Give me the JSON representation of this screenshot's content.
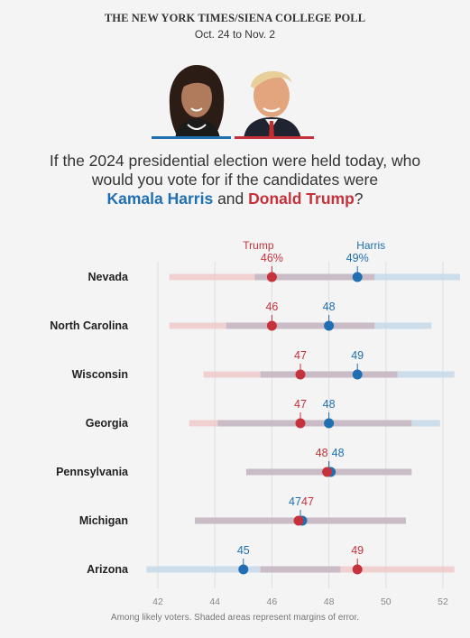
{
  "header": {
    "title": "THE NEW YORK TIMES/SIENA COLLEGE POLL",
    "dates": "Oct. 24 to Nov. 2"
  },
  "question": {
    "prefix": "If the 2024 presidential election were held today, who would you vote for if the candidates were",
    "harris": "Kamala Harris",
    "and": "and",
    "trump": "Donald Trump",
    "suffix": "?"
  },
  "colors": {
    "harris": "#1f6fb2",
    "trump": "#c5323b",
    "harris_band": "#c6d8e8",
    "trump_band": "#f0c9cb",
    "overlap_band": "#c9bcc6",
    "grid": "#dddddd"
  },
  "chart_data": {
    "type": "scatter",
    "xlim": [
      41.3,
      52.7
    ],
    "xticks": [
      42,
      44,
      46,
      48,
      50,
      52
    ],
    "grid": true,
    "legend": [
      "Trump",
      "Harris"
    ],
    "rows": [
      {
        "state": "Nevada",
        "trump": 46,
        "harris": 49,
        "trump_label": "46%",
        "harris_label": "49%",
        "trump_range": [
          42.4,
          49.6
        ],
        "harris_range": [
          45.4,
          52.6
        ]
      },
      {
        "state": "North Carolina",
        "trump": 46,
        "harris": 48,
        "trump_label": "46",
        "harris_label": "48",
        "trump_range": [
          42.4,
          49.6
        ],
        "harris_range": [
          44.4,
          51.6
        ]
      },
      {
        "state": "Wisconsin",
        "trump": 47,
        "harris": 49,
        "trump_label": "47",
        "harris_label": "49",
        "trump_range": [
          43.6,
          50.4
        ],
        "harris_range": [
          45.6,
          52.4
        ]
      },
      {
        "state": "Georgia",
        "trump": 47,
        "harris": 48,
        "trump_label": "47",
        "harris_label": "48",
        "trump_range": [
          43.1,
          50.9
        ],
        "harris_range": [
          44.1,
          51.9
        ]
      },
      {
        "state": "Pennsylvania",
        "trump": 48,
        "harris": 48,
        "trump_label": "48",
        "harris_label": "48",
        "trump_range": [
          45.1,
          50.9
        ],
        "harris_range": [
          45.1,
          50.9
        ]
      },
      {
        "state": "Michigan",
        "trump": 47,
        "harris": 47,
        "trump_label": "47",
        "harris_label": "47",
        "trump_range": [
          43.3,
          50.7
        ],
        "harris_range": [
          43.3,
          50.7
        ]
      },
      {
        "state": "Arizona",
        "trump": 49,
        "harris": 45,
        "trump_label": "49",
        "harris_label": "45",
        "trump_range": [
          45.6,
          52.4
        ],
        "harris_range": [
          41.6,
          48.4
        ]
      }
    ]
  },
  "footnote": "Among likely voters. Shaded areas represent margins of error."
}
